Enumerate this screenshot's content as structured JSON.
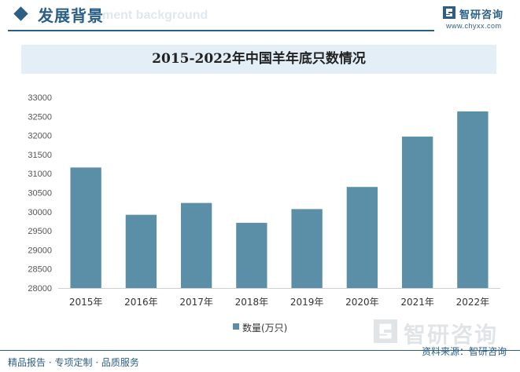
{
  "header": {
    "title": "发展背景",
    "subtitle": "ment background",
    "logo_text": "智研咨询",
    "logo_url": "www.chyxx.com"
  },
  "chart_title": "2015-2022年中国羊年底只数情况",
  "chart_data": {
    "type": "bar",
    "title": "2015-2022年中国羊年底只数情况",
    "categories": [
      "2015年",
      "2016年",
      "2017年",
      "2018年",
      "2019年",
      "2020年",
      "2021年",
      "2022年"
    ],
    "series": [
      {
        "name": "数量(万只)",
        "values": [
          31160,
          29920,
          30230,
          29710,
          30070,
          30650,
          31970,
          32630
        ]
      }
    ],
    "ylim": [
      28000,
      33000
    ],
    "yticks": [
      28000,
      28500,
      29000,
      29500,
      30000,
      30500,
      31000,
      31500,
      32000,
      32500,
      33000
    ],
    "grid": false,
    "legend_position": "bottom",
    "bar_color": "#5b8fa8"
  },
  "legend": {
    "label": "数量(万只)"
  },
  "watermark": {
    "text": "智研咨询"
  },
  "footer": {
    "left": "精品报告 · 专项定制 · 品质服务",
    "right": "资料来源：智研咨询"
  }
}
